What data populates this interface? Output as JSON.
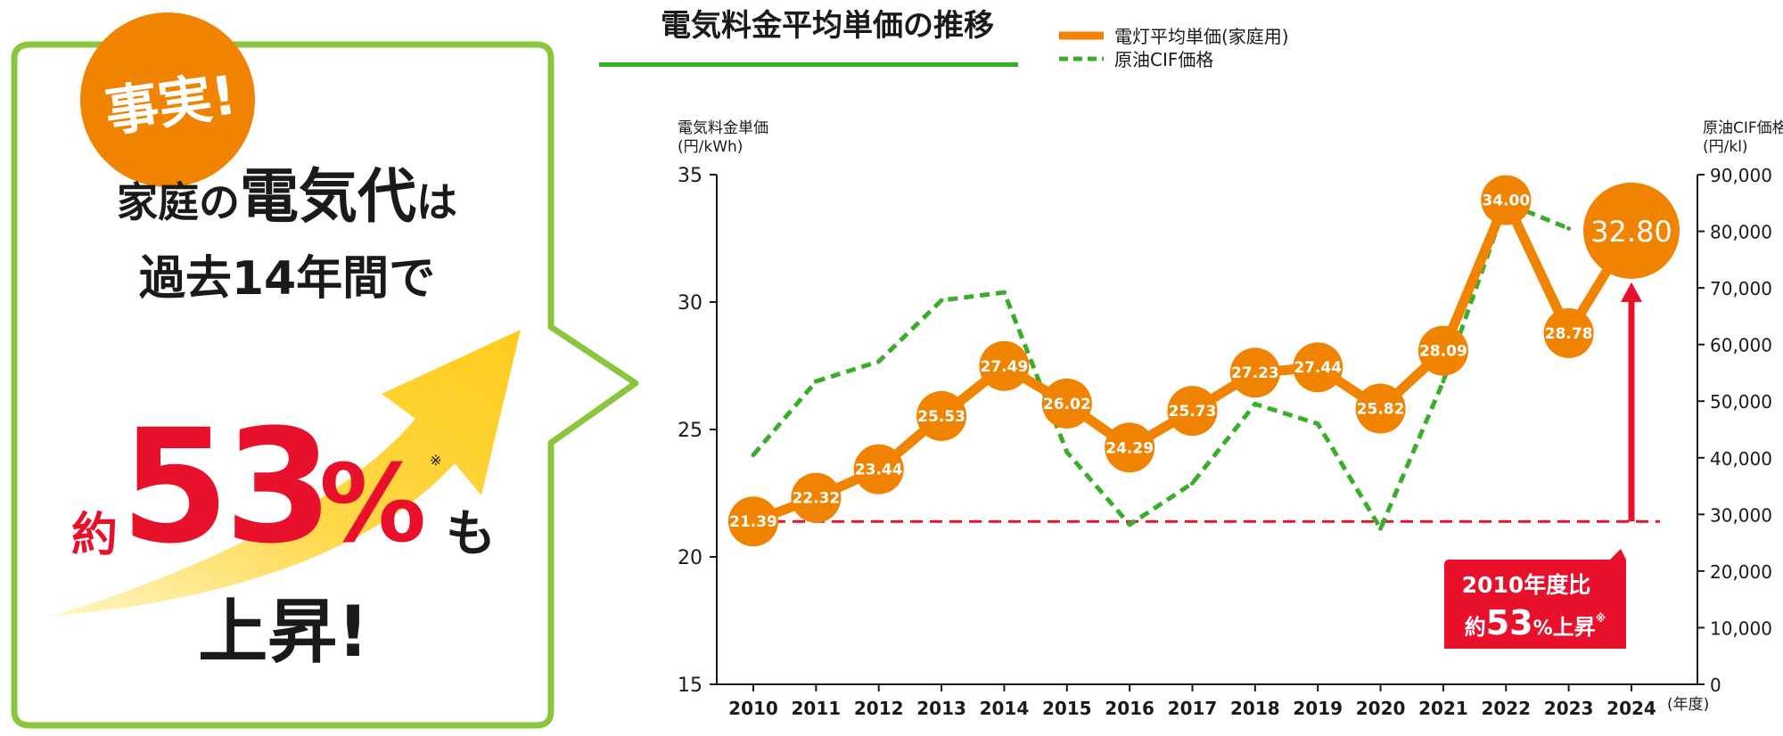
{
  "callout": {
    "badge": "事実!",
    "line1_small_a": "家庭の",
    "line1_big": "電気代",
    "line1_small_b": "は",
    "line2": "過去14年間で",
    "prefix": "約",
    "big_number": "53",
    "percent": "%",
    "note_mark": "※",
    "suffix": "も",
    "line4": "上昇!"
  },
  "chart_data": {
    "type": "line",
    "title": "電気料金平均単価の推移",
    "x": [
      "2010",
      "2011",
      "2012",
      "2013",
      "2014",
      "2015",
      "2016",
      "2017",
      "2018",
      "2019",
      "2020",
      "2021",
      "2022",
      "2023",
      "2024"
    ],
    "x_unit": "(年度)",
    "y_left": {
      "label_line1": "電気料金単価",
      "label_line2": "(円/kWh)",
      "range": [
        15,
        35
      ],
      "ticks": [
        "15",
        "20",
        "25",
        "30",
        "35"
      ]
    },
    "y_right": {
      "label_line1": "原油CIF価格",
      "label_line2": "(円/kl)",
      "range": [
        0,
        90000
      ],
      "ticks": [
        "0",
        "10,000",
        "20,000",
        "30,000",
        "40,000",
        "50,000",
        "60,000",
        "70,000",
        "80,000",
        "90,000"
      ]
    },
    "series": [
      {
        "name": "電灯平均単価(家庭用)",
        "axis": "left",
        "color": "#f08300",
        "style": "solid",
        "values": [
          21.39,
          22.32,
          23.44,
          25.53,
          27.49,
          26.02,
          24.29,
          25.73,
          27.23,
          27.44,
          25.82,
          28.09,
          34.0,
          28.78,
          32.8
        ],
        "labels": [
          "21.39",
          "22.32",
          "23.44",
          "25.53",
          "27.49",
          "26.02",
          "24.29",
          "25.73",
          "27.23",
          "27.44",
          "25.82",
          "28.09",
          "34.00",
          "28.78",
          "32.80"
        ]
      },
      {
        "name": "原油CIF価格",
        "axis": "right",
        "color": "#3aad2a",
        "style": "dotted",
        "values": [
          40500,
          53500,
          57000,
          67800,
          69200,
          41000,
          28200,
          35500,
          49500,
          46000,
          27500,
          53500,
          85000,
          80500,
          null
        ]
      }
    ],
    "reference_line": {
      "axis": "left",
      "value": 21.39,
      "color": "#e8102a",
      "style": "dashed"
    },
    "annotation": {
      "line1": "2010年度比",
      "prefix": "約",
      "number": "53",
      "percent": "%",
      "suffix": "上昇",
      "note_mark": "※",
      "color": "#e8102a"
    }
  }
}
